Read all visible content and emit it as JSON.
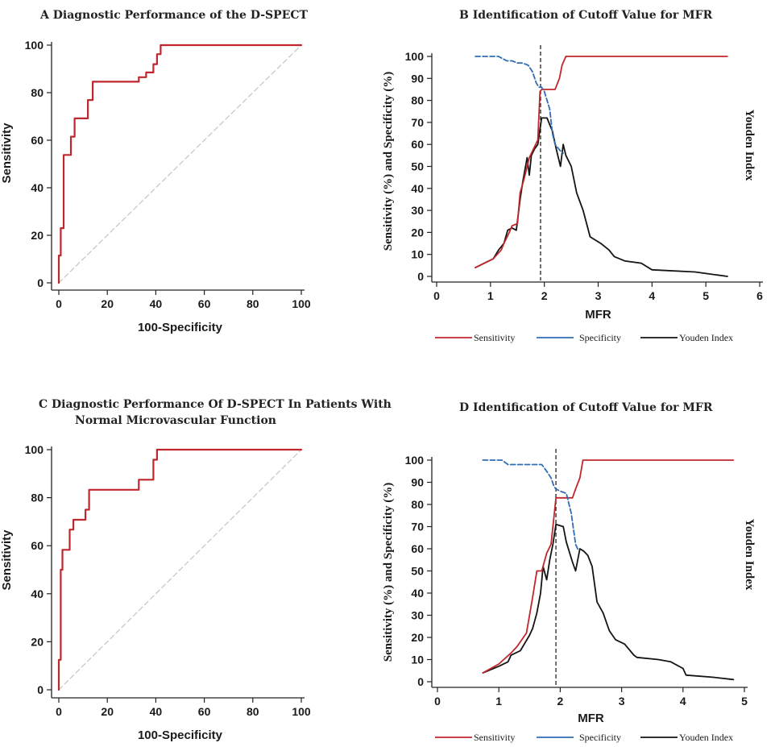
{
  "colors": {
    "roc": "#c0272d",
    "diagonal": "#c8c8c8",
    "sensitivity": "#c0272d",
    "specificity": "#2f6db5",
    "youden": "#141414",
    "cutoff": "#333333"
  },
  "chart_data": [
    {
      "panel": "A",
      "type": "line",
      "title": "A  Diagnostic Performance of the D-SPECT",
      "xlabel": "100-Specificity",
      "ylabel": "Sensitivity",
      "xlim": [
        0,
        100
      ],
      "ylim": [
        0,
        100
      ],
      "xticks": [
        0,
        20,
        40,
        60,
        80,
        100
      ],
      "yticks": [
        0,
        20,
        40,
        60,
        80,
        100
      ],
      "grid": false,
      "series": [
        {
          "x": [
            0,
            0,
            0.8,
            0.8,
            2,
            2,
            5,
            5,
            6.5,
            6.5,
            12,
            12,
            14,
            14,
            33,
            33,
            36,
            36,
            39,
            39,
            40.5,
            40.5,
            42,
            42,
            100
          ],
          "y": [
            0,
            11.5,
            11.5,
            23,
            23,
            53.8,
            53.8,
            61.5,
            61.5,
            69.2,
            69.2,
            76.9,
            76.9,
            84.6,
            84.6,
            86.5,
            86.5,
            88.5,
            88.5,
            92,
            92,
            96.2,
            96.2,
            100,
            100
          ]
        },
        {
          "x": [
            0,
            100
          ],
          "y": [
            0,
            100
          ]
        }
      ]
    },
    {
      "panel": "B",
      "type": "line",
      "title": "B    Identification of Cutoff Value for MFR",
      "xlabel": "MFR",
      "ylabel": "Sensitivity (%) and Specificity (%)",
      "y2label": "Youden Index",
      "xlim": [
        0,
        6
      ],
      "ylim": [
        0,
        100
      ],
      "xticks": [
        0,
        1,
        2,
        3,
        4,
        5,
        6
      ],
      "yticks": [
        0,
        10,
        20,
        30,
        40,
        50,
        60,
        70,
        80,
        90,
        100
      ],
      "cutoff": 1.93,
      "grid": false,
      "legend": [
        "Sensitivity",
        "Specificity",
        "Youden Index"
      ],
      "legend_position": "bottom",
      "series": [
        {
          "name": "Sensitivity",
          "x": [
            0.72,
            1.05,
            1.2,
            1.25,
            1.35,
            1.4,
            1.5,
            1.55,
            1.62,
            1.72,
            1.8,
            1.88,
            1.92,
            1.95,
            2.2,
            2.28,
            2.33,
            2.4,
            5.4
          ],
          "y": [
            4,
            8,
            12,
            15,
            20,
            23,
            24,
            38,
            44,
            54,
            58,
            62,
            84,
            85,
            85,
            90,
            96,
            100,
            100
          ]
        },
        {
          "name": "Specificity",
          "x": [
            0.72,
            1.0,
            1.15,
            1.3,
            1.4,
            1.5,
            1.6,
            1.7,
            1.78,
            1.85,
            1.9,
            1.95,
            2.0,
            2.1,
            2.15,
            2.2,
            2.3,
            2.35
          ],
          "y": [
            100,
            100,
            100,
            98,
            98,
            97,
            97,
            96,
            93,
            88,
            86,
            86,
            84,
            76,
            65,
            60,
            57,
            56
          ]
        },
        {
          "name": "Youden Index",
          "x": [
            0.72,
            1.05,
            1.15,
            1.25,
            1.32,
            1.4,
            1.48,
            1.55,
            1.6,
            1.68,
            1.72,
            1.76,
            1.82,
            1.88,
            1.95,
            2.05,
            2.15,
            2.22,
            2.3,
            2.35,
            2.4,
            2.5,
            2.6,
            2.72,
            2.85,
            3.05,
            3.2,
            3.3,
            3.5,
            3.8,
            4.0,
            4.8,
            5.4
          ],
          "y": [
            4,
            8,
            12,
            15,
            21,
            22,
            21,
            35,
            43,
            54,
            46,
            55,
            58,
            60,
            72,
            72,
            66,
            58,
            50,
            60,
            55,
            50,
            38,
            30,
            18,
            15,
            12,
            9,
            7,
            6,
            3,
            2,
            0
          ]
        }
      ]
    },
    {
      "panel": "C",
      "type": "line",
      "title_line1": "C     Diagnostic Performance Of D-SPECT In Patients With",
      "title_line2": "Normal Microvascular Function",
      "xlabel": "100-Specificity",
      "ylabel": "Sensitivity",
      "xlim": [
        0,
        100
      ],
      "ylim": [
        0,
        100
      ],
      "xticks": [
        0,
        20,
        40,
        60,
        80,
        100
      ],
      "yticks": [
        0,
        20,
        40,
        60,
        80,
        100
      ],
      "grid": false,
      "series": [
        {
          "x": [
            0,
            0,
            0.8,
            0.8,
            1.5,
            1.5,
            4.5,
            4.5,
            6,
            6,
            11,
            11,
            12.5,
            12.5,
            33,
            33,
            35,
            35,
            39,
            39,
            40.5,
            40.5,
            100
          ],
          "y": [
            0,
            12.5,
            12.5,
            50,
            50,
            58.3,
            58.3,
            66.7,
            66.7,
            70.8,
            70.8,
            75,
            75,
            83.3,
            83.3,
            87.5,
            87.5,
            87.5,
            87.5,
            95.8,
            95.8,
            100,
            100
          ]
        },
        {
          "x": [
            0,
            100
          ],
          "y": [
            0,
            100
          ]
        }
      ]
    },
    {
      "panel": "D",
      "type": "line",
      "title": "D    Identification of Cutoff Value for MFR",
      "xlabel": "MFR",
      "ylabel": "Sensitivity (%) and Specificity (%)",
      "y2label": "Youden Index",
      "xlim": [
        0,
        5
      ],
      "ylim": [
        0,
        100
      ],
      "xticks": [
        0,
        1,
        2,
        3,
        4,
        5
      ],
      "yticks": [
        0,
        10,
        20,
        30,
        40,
        50,
        60,
        70,
        80,
        90,
        100
      ],
      "cutoff": 1.93,
      "grid": false,
      "legend": [
        "Sensitivity",
        "Specificity",
        "Youden Index"
      ],
      "legend_position": "bottom",
      "series": [
        {
          "name": "Sensitivity",
          "x": [
            0.74,
            1.0,
            1.2,
            1.3,
            1.45,
            1.55,
            1.62,
            1.7,
            1.78,
            1.85,
            1.9,
            1.93,
            2.2,
            2.25,
            2.32,
            2.37,
            4.82
          ],
          "y": [
            4,
            8,
            13,
            16,
            22,
            38,
            50,
            50,
            58,
            62,
            75,
            83,
            83,
            87,
            92,
            100,
            100
          ]
        },
        {
          "name": "Specificity",
          "x": [
            0.74,
            1.05,
            1.15,
            1.3,
            1.45,
            1.7,
            1.78,
            1.85,
            1.9,
            1.93,
            2.0,
            2.1,
            2.18,
            2.25,
            2.3
          ],
          "y": [
            100,
            100,
            98,
            98,
            98,
            98,
            95,
            92,
            88,
            87,
            86,
            85,
            76,
            62,
            59
          ]
        },
        {
          "name": "Youden Index",
          "x": [
            0.74,
            1.0,
            1.15,
            1.2,
            1.35,
            1.5,
            1.55,
            1.62,
            1.68,
            1.72,
            1.78,
            1.83,
            1.88,
            1.93,
            2.05,
            2.1,
            2.2,
            2.25,
            2.32,
            2.38,
            2.45,
            2.52,
            2.6,
            2.7,
            2.8,
            2.9,
            3.05,
            3.2,
            3.25,
            3.6,
            3.8,
            4.0,
            4.05,
            4.5,
            4.82
          ],
          "y": [
            4,
            7,
            9,
            12,
            14,
            21,
            24,
            31,
            40,
            52,
            46,
            55,
            62,
            71,
            70,
            63,
            54,
            50,
            60,
            59,
            57,
            52,
            36,
            31,
            23,
            19,
            17,
            12,
            11,
            10,
            9,
            6,
            3,
            2,
            1
          ]
        }
      ]
    }
  ],
  "legend": {
    "sensitivity": "Sensitivity",
    "specificity": "Specificity",
    "youden": "Youden Index"
  }
}
